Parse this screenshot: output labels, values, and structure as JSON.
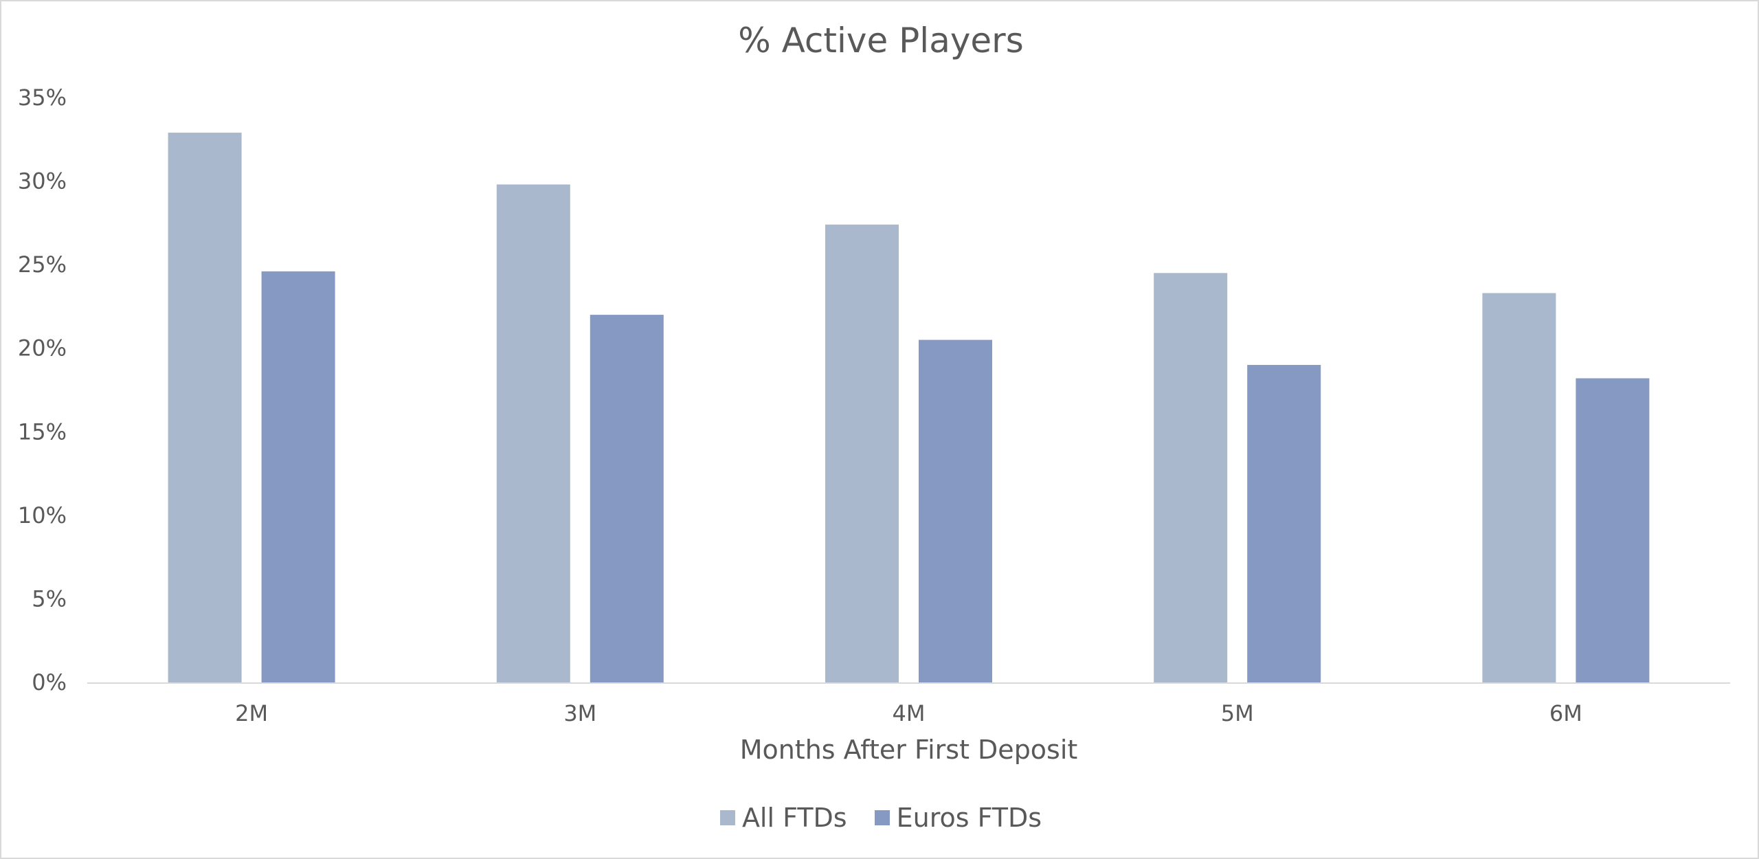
{
  "colors": {
    "all_ftds": "#a9b8cd",
    "euros_ftds": "#8599c3",
    "axis_line": "#d9d9d9",
    "text": "#595959"
  },
  "chart_data": {
    "type": "bar",
    "title": "% Active Players",
    "xlabel": "Months After First Deposit",
    "ylabel": "",
    "categories": [
      "2M",
      "3M",
      "4M",
      "5M",
      "6M"
    ],
    "series": [
      {
        "name": "All FTDs",
        "values": [
          32.9,
          29.8,
          27.4,
          24.5,
          23.3
        ]
      },
      {
        "name": "Euros FTDs",
        "values": [
          24.6,
          22.0,
          20.5,
          19.0,
          18.2
        ]
      }
    ],
    "ylim": [
      0,
      35
    ],
    "yticks": [
      0,
      5,
      10,
      15,
      20,
      25,
      30,
      35
    ],
    "ytick_labels": [
      "0%",
      "5%",
      "10%",
      "15%",
      "20%",
      "25%",
      "30%",
      "35%"
    ],
    "grid": false,
    "legend_position": "bottom"
  }
}
